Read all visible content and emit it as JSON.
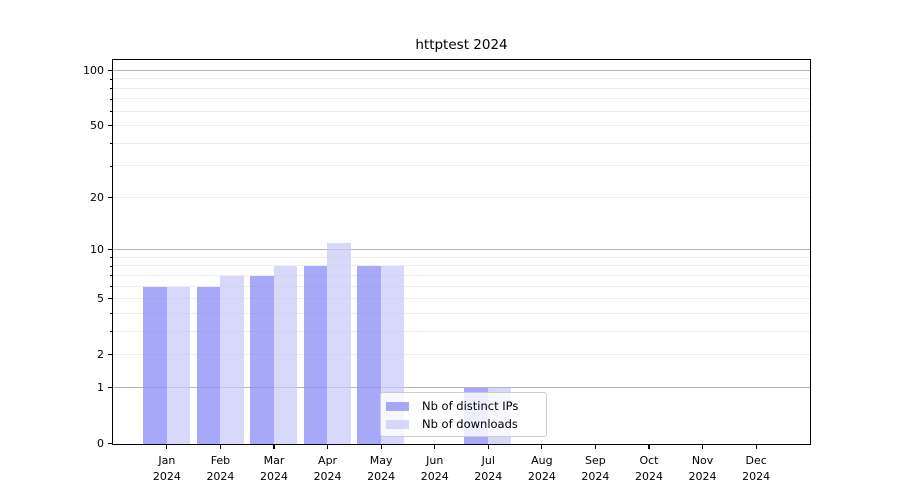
{
  "chart_data": {
    "type": "bar",
    "title": "httptest 2024",
    "categories": [
      "Jan 2024",
      "Feb 2024",
      "Mar 2024",
      "Apr 2024",
      "May 2024",
      "Jun 2024",
      "Jul 2024",
      "Aug 2024",
      "Sep 2024",
      "Oct 2024",
      "Nov 2024",
      "Dec 2024"
    ],
    "months": [
      "Jan",
      "Feb",
      "Mar",
      "Apr",
      "May",
      "Jun",
      "Jul",
      "Aug",
      "Sep",
      "Oct",
      "Nov",
      "Dec"
    ],
    "year": "2024",
    "series": [
      {
        "name": "Nb of distinct IPs",
        "color": "#a8a8f8",
        "color_rgba": "rgba(136,136,246,0.73)",
        "values": [
          6,
          6,
          7,
          8,
          8,
          0,
          1,
          0,
          0,
          0,
          0,
          0
        ]
      },
      {
        "name": "Nb of downloads",
        "color": "#d8d8fa",
        "color_rgba": "rgba(200,200,248,0.71)",
        "values": [
          6,
          7,
          8,
          11,
          8,
          0,
          1,
          0,
          0,
          0,
          0,
          0
        ]
      }
    ],
    "y_axis": {
      "scale": "log1p",
      "tick_labels": [
        0,
        1,
        2,
        5,
        10,
        20,
        50,
        100
      ],
      "major_grid_values": [
        1,
        10,
        100
      ],
      "minor_grid_values": [
        2,
        3,
        4,
        5,
        6,
        7,
        8,
        9,
        20,
        30,
        40,
        50,
        60,
        70,
        80,
        90
      ],
      "ymax": 113.7
    },
    "x_axis": {
      "tick_count": 12
    },
    "legend": {
      "entries": [
        "Nb of distinct IPs",
        "Nb of downloads"
      ]
    },
    "grid": {
      "major_color": "#b5b5b5",
      "minor_color": "#ededed"
    },
    "axis_color": "#000000",
    "background": "#ffffff"
  }
}
